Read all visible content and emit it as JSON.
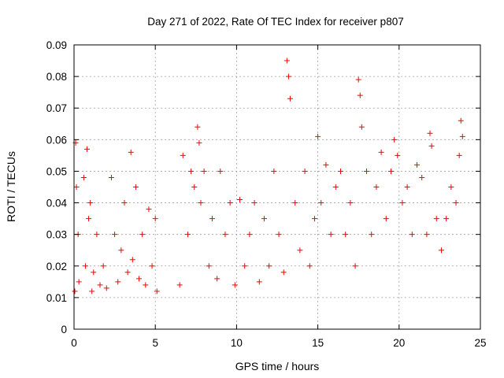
{
  "chart_data": {
    "type": "scatter",
    "title": "Day 271 of 2022, Rate Of TEC Index for receiver p807",
    "xlabel": "GPS time / hours",
    "ylabel": "ROTI / TECUs",
    "xlim": [
      0,
      25
    ],
    "ylim": [
      0,
      0.09
    ],
    "xticks": [
      "0",
      "5",
      "10",
      "15",
      "20",
      "25"
    ],
    "yticks": [
      "0",
      "0.01",
      "0.02",
      "0.03",
      "0.04",
      "0.05",
      "0.06",
      "0.07",
      "0.08",
      "0.09"
    ],
    "grid": true,
    "marker": "plus",
    "color": "#ff0000",
    "data_gap_hours": [
      5.2,
      6.3
    ],
    "series": [
      {
        "x": [
          0.05,
          0.1,
          0.15,
          0.25,
          0.3,
          0.6,
          0.7,
          0.8,
          0.9,
          1.0,
          1.1,
          1.2,
          1.4,
          1.6,
          1.8,
          2.0,
          2.3,
          2.5,
          2.7,
          2.9,
          3.1,
          3.3,
          3.5,
          3.6,
          3.8,
          4.0,
          4.2,
          4.4,
          4.6,
          4.8,
          5.0,
          5.1,
          6.5,
          6.7,
          7.0,
          7.2,
          7.4,
          7.6,
          7.7,
          7.8,
          8.0,
          8.3,
          8.5,
          8.8,
          9.0,
          9.3,
          9.6,
          9.9,
          10.2,
          10.5,
          10.8,
          11.1,
          11.4,
          11.7,
          12.0,
          12.3,
          12.6,
          12.9,
          13.1,
          13.2,
          13.3,
          13.6,
          13.9,
          14.2,
          14.5,
          14.8,
          15.0,
          15.2,
          15.5,
          15.8,
          16.1,
          16.4,
          16.7,
          17.0,
          17.3,
          17.5,
          17.6,
          17.7,
          18.0,
          18.3,
          18.6,
          18.9,
          19.2,
          19.5,
          19.7,
          19.9,
          20.2,
          20.5,
          20.8,
          21.1,
          21.4,
          21.7,
          21.9,
          22.0,
          22.3,
          22.6,
          22.9,
          23.2,
          23.5,
          23.7,
          23.8,
          23.9
        ],
        "y": [
          0.012,
          0.059,
          0.045,
          0.03,
          0.015,
          0.048,
          0.02,
          0.057,
          0.035,
          0.04,
          0.012,
          0.018,
          0.03,
          0.014,
          0.02,
          0.013,
          0.048,
          0.03,
          0.015,
          0.025,
          0.04,
          0.018,
          0.056,
          0.022,
          0.045,
          0.016,
          0.03,
          0.014,
          0.038,
          0.02,
          0.035,
          0.012,
          0.014,
          0.055,
          0.03,
          0.05,
          0.045,
          0.064,
          0.059,
          0.04,
          0.05,
          0.02,
          0.035,
          0.016,
          0.05,
          0.03,
          0.04,
          0.014,
          0.041,
          0.02,
          0.03,
          0.04,
          0.015,
          0.035,
          0.02,
          0.05,
          0.03,
          0.018,
          0.085,
          0.08,
          0.073,
          0.04,
          0.025,
          0.05,
          0.02,
          0.035,
          0.061,
          0.04,
          0.052,
          0.03,
          0.045,
          0.05,
          0.03,
          0.04,
          0.02,
          0.079,
          0.074,
          0.064,
          0.05,
          0.03,
          0.045,
          0.056,
          0.035,
          0.05,
          0.06,
          0.055,
          0.04,
          0.045,
          0.03,
          0.052,
          0.048,
          0.03,
          0.062,
          0.058,
          0.035,
          0.025,
          0.035,
          0.045,
          0.04,
          0.055,
          0.066,
          0.061
        ]
      }
    ]
  }
}
